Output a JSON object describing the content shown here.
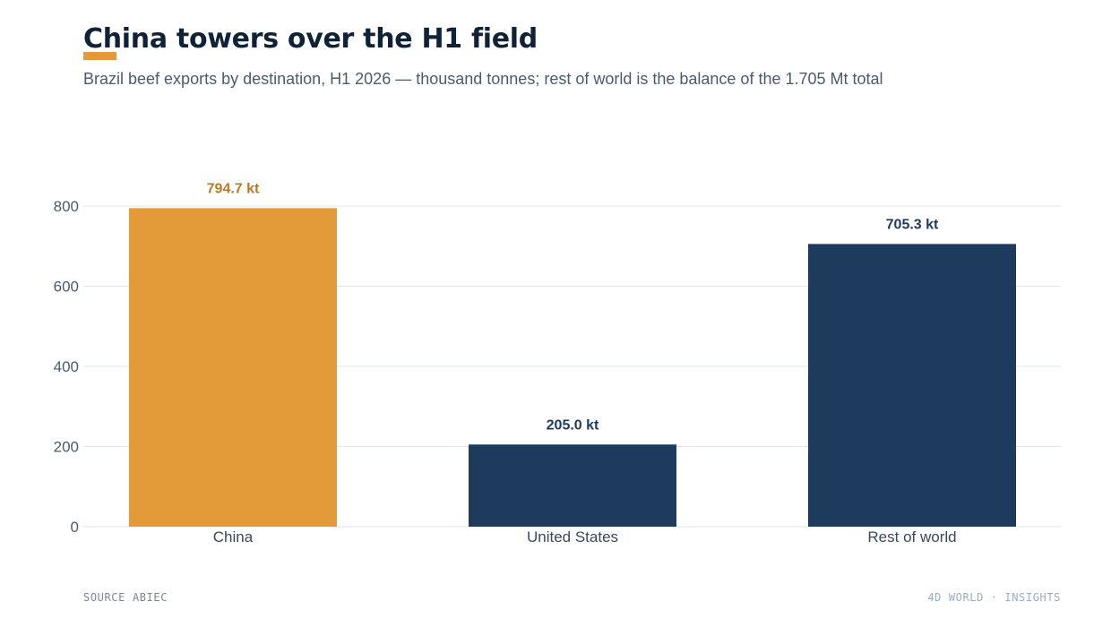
{
  "header": {
    "title": "China towers over the H1 field",
    "subtitle": "Brazil beef exports by destination, H1 2026 — thousand tonnes; rest of world is the balance of the 1.705 Mt total"
  },
  "footer": {
    "source_label": "SOURCE",
    "source_name": "ABIEC",
    "brand": "4D WORLD · INSIGHTS"
  },
  "colors": {
    "highlight": "#e39b3a",
    "highlight_text": "#b77a27",
    "base": "#1e3a5c",
    "base_text": "#1e3a5c",
    "grid": "#dfe4ec",
    "title": "#0f2238"
  },
  "chart_data": {
    "type": "bar",
    "title": "China towers over the H1 field",
    "subtitle": "Brazil beef exports by destination, H1 2026 — thousand tonnes; rest of world is the balance of the 1.705 Mt total",
    "categories": [
      "China",
      "United States",
      "Rest of world"
    ],
    "values": [
      794.7,
      205.0,
      705.3
    ],
    "value_labels": [
      "794.7 kt",
      "205.0 kt",
      "705.3 kt"
    ],
    "highlight": [
      true,
      false,
      false
    ],
    "ylim": [
      0,
      800
    ],
    "yticks": [
      0,
      200,
      400,
      600,
      800
    ],
    "ytick_labels": [
      "0",
      "200",
      "400",
      "600",
      "800"
    ],
    "xlabel": "",
    "ylabel": "",
    "grid": true,
    "legend": "none"
  }
}
